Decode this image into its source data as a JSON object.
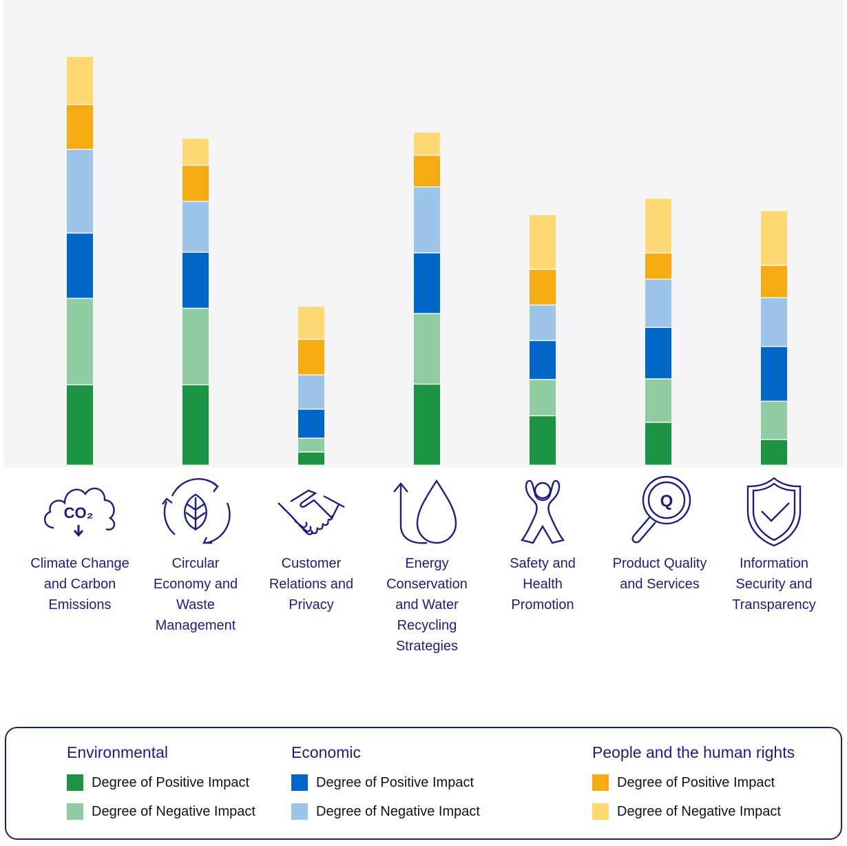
{
  "chart_data": {
    "type": "stacked-bar",
    "categories": [
      "Climate Change and Carbon Emissions",
      "Circular Economy and Waste Management",
      "Customer Relations and Privacy",
      "Energy Conservation and Water Recycling Strategies",
      "Safety and Health Promotion",
      "Product Quality and Services",
      "Information Security and Transparency"
    ],
    "series": [
      {
        "name": "Environmental - Degree of Positive Impact",
        "color": "#1c9444",
        "values": [
          12.2,
          12.2,
          2.0,
          12.3,
          7.5,
          6.5,
          3.9
        ]
      },
      {
        "name": "Environmental - Degree of Negative Impact",
        "color": "#8fcca2",
        "values": [
          13.1,
          11.6,
          2.1,
          10.7,
          5.5,
          6.6,
          5.8
        ]
      },
      {
        "name": "Economic - Degree of Positive Impact",
        "color": "#0066c8",
        "values": [
          9.9,
          8.5,
          4.4,
          9.2,
          5.9,
          7.8,
          8.3
        ]
      },
      {
        "name": "Economic - Degree of Negative Impact",
        "color": "#9bc4e8",
        "values": [
          12.7,
          7.7,
          5.2,
          10.0,
          5.4,
          7.3,
          7.4
        ]
      },
      {
        "name": "People and the human rights - Degree of Positive Impact",
        "color": "#f4ac12",
        "values": [
          6.8,
          5.5,
          5.4,
          4.8,
          5.4,
          4.0,
          4.9
        ]
      },
      {
        "name": "People and the human rights - Degree of Negative Impact",
        "color": "#fdd873",
        "values": [
          7.3,
          4.1,
          5.0,
          3.5,
          8.3,
          8.3,
          8.3
        ]
      }
    ],
    "ylim": [
      0,
      70
    ],
    "grid": false,
    "title": "",
    "xlabel": "",
    "ylabel": ""
  },
  "categories_display": [
    {
      "label": "Climate Change and Carbon Emissions",
      "icon": "co2-cloud-icon",
      "icon_text": "CO₂"
    },
    {
      "label": "Circular Economy and Waste Management",
      "icon": "recycle-leaf-icon"
    },
    {
      "label": "Customer Relations and Privacy",
      "icon": "handshake-icon"
    },
    {
      "label": "Energy Conservation and Water Recycling Strategies",
      "icon": "water-drop-icon"
    },
    {
      "label": "Safety and Health Promotion",
      "icon": "person-cheer-icon"
    },
    {
      "label": "Product Quality and Services",
      "icon": "magnifier-q-icon",
      "icon_text": "Q"
    },
    {
      "label": "Information Security and Transparency",
      "icon": "shield-check-icon"
    }
  ],
  "legend": {
    "groups": [
      {
        "title": "Environmental",
        "items": [
          {
            "label": "Degree of Positive Impact",
            "color": "#1c9444"
          },
          {
            "label": "Degree of Negative Impact",
            "color": "#8fcca2"
          }
        ]
      },
      {
        "title": "Economic",
        "items": [
          {
            "label": "Degree of Positive Impact",
            "color": "#0066c8"
          },
          {
            "label": "Degree of Negative Impact",
            "color": "#9bc4e8"
          }
        ]
      },
      {
        "title": "People and the human rights",
        "items": [
          {
            "label": "Degree of Positive Impact",
            "color": "#f4ac12"
          },
          {
            "label": "Degree of Negative Impact",
            "color": "#fdd873"
          }
        ]
      }
    ]
  },
  "colors": {
    "accent": "#1d1d7a",
    "background": "#f5f5f7"
  }
}
